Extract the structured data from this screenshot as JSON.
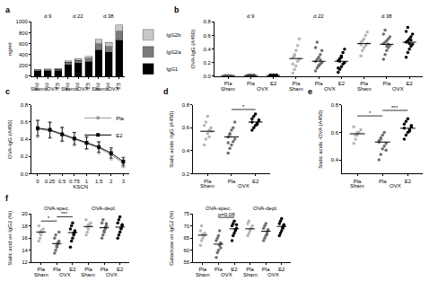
{
  "chart_data": [
    {
      "type": "bar",
      "title": "a",
      "y_label": "ng/ml",
      "stacked": true,
      "grid": false,
      "legend": "right",
      "categories": [
        "Pla",
        "Pla",
        "E2",
        "Pla",
        "Pla",
        "E2",
        "Pla",
        "Pla",
        "E2"
      ],
      "series": [
        {
          "name": "IgG1",
          "color": "#000000",
          "values": [
            95,
            100,
            105,
            210,
            240,
            270,
            480,
            440,
            660
          ]
        },
        {
          "name": "IgG2a",
          "color": "#7a7a7a",
          "values": [
            20,
            22,
            25,
            50,
            55,
            60,
            120,
            110,
            170
          ]
        },
        {
          "name": "IgG2b",
          "color": "#c8c8c8",
          "values": [
            10,
            12,
            12,
            25,
            30,
            35,
            80,
            70,
            110
          ]
        }
      ],
      "ylim": [
        0,
        1000
      ],
      "yticks": [
        0,
        200,
        400,
        600,
        800,
        1000
      ],
      "headers": [
        {
          "label": "d 9",
          "x": 1
        },
        {
          "label": "d 22",
          "x": 4
        },
        {
          "label": "d 38",
          "x": 7
        }
      ],
      "group_labels": [
        {
          "label": "Sham",
          "x": 0
        },
        {
          "label": "OVX",
          "x": 1.5
        },
        {
          "label": "Sham",
          "x": 3
        },
        {
          "label": "OVX",
          "x": 4.5
        },
        {
          "label": "Sham",
          "x": 6
        },
        {
          "label": "OVX",
          "x": 7.5
        }
      ]
    },
    {
      "type": "scatter",
      "title": "b",
      "y_label": "OVA-IgG (A450)",
      "grid": false,
      "categories": [
        "Pla",
        "Pla",
        "E2",
        "Pla",
        "Pla",
        "E2",
        "Pla",
        "Pla",
        "E2"
      ],
      "points": [
        {
          "color": "#b5b5b5",
          "median": 0.01,
          "values": [
            0.01,
            0.01,
            0.02,
            0.01,
            0.01,
            0.02,
            0.01,
            0.01
          ]
        },
        {
          "color": "#6e6e6e",
          "median": 0.01,
          "values": [
            0.01,
            0.02,
            0.01,
            0.01,
            0.02,
            0.01,
            0.01,
            0.02,
            0.01,
            0.01
          ]
        },
        {
          "color": "#000000",
          "median": 0.01,
          "values": [
            0.01,
            0.01,
            0.02,
            0.01,
            0.01,
            0.02,
            0.01,
            0.01,
            0.01,
            0.02
          ]
        },
        {
          "color": "#b5b5b5",
          "median": 0.26,
          "values": [
            0.05,
            0.1,
            0.15,
            0.22,
            0.25,
            0.28,
            0.32,
            0.38,
            0.45,
            0.55,
            0.18,
            0.3
          ]
        },
        {
          "color": "#6e6e6e",
          "median": 0.22,
          "values": [
            0.08,
            0.12,
            0.15,
            0.18,
            0.2,
            0.22,
            0.25,
            0.28,
            0.32,
            0.38,
            0.42,
            0.5,
            0.16,
            0.24
          ]
        },
        {
          "color": "#000000",
          "median": 0.22,
          "values": [
            0.06,
            0.1,
            0.14,
            0.18,
            0.2,
            0.23,
            0.26,
            0.3,
            0.35,
            0.4,
            0.12,
            0.22,
            0.28
          ]
        },
        {
          "color": "#b5b5b5",
          "median": 0.48,
          "values": [
            0.3,
            0.38,
            0.42,
            0.45,
            0.48,
            0.5,
            0.52,
            0.55,
            0.6,
            0.65,
            0.46
          ]
        },
        {
          "color": "#6e6e6e",
          "median": 0.47,
          "values": [
            0.25,
            0.32,
            0.38,
            0.42,
            0.45,
            0.48,
            0.5,
            0.52,
            0.55,
            0.58,
            0.62,
            0.68,
            0.44,
            0.47
          ]
        },
        {
          "color": "#000000",
          "median": 0.5,
          "values": [
            0.28,
            0.35,
            0.4,
            0.44,
            0.47,
            0.5,
            0.52,
            0.55,
            0.58,
            0.62,
            0.66,
            0.72,
            0.48,
            0.53
          ]
        }
      ],
      "ylim": [
        0,
        0.8
      ],
      "yticks": [
        {
          "value": 0,
          "label": "0.0"
        },
        0.2,
        0.4,
        0.6,
        0.8
      ],
      "headers": [
        {
          "label": "d 9",
          "x": 1
        },
        {
          "label": "d 22",
          "x": 4
        },
        {
          "label": "d 38",
          "x": 7
        }
      ],
      "group_labels": [
        {
          "label": "Sham",
          "x": 0
        },
        {
          "label": "OVX",
          "x": 1.5
        },
        {
          "label": "Sham",
          "x": 3
        },
        {
          "label": "OVX",
          "x": 4.5
        },
        {
          "label": "Sham",
          "x": 6
        },
        {
          "label": "OVX",
          "x": 7.5
        }
      ]
    },
    {
      "type": "line",
      "title": "c",
      "x_label": "KSCN",
      "y_label": "OVA-IgG (A450)",
      "grid": false,
      "legend": "top right",
      "categories": [
        "0",
        "0.25",
        "0.5",
        "0.75",
        "1",
        "1.5",
        "2",
        "3"
      ],
      "series": [
        {
          "name": "Pla",
          "color": "#999999",
          "marker": "circle",
          "line_style": "solid",
          "values": [
            0.52,
            0.5,
            0.45,
            0.4,
            0.35,
            0.3,
            0.22,
            0.12
          ],
          "errors": [
            0.1,
            0.09,
            0.08,
            0.08,
            0.07,
            0.07,
            0.06,
            0.05
          ]
        },
        {
          "name": "E2",
          "color": "#000000",
          "marker": "square",
          "line_style": "solid",
          "values": [
            0.53,
            0.51,
            0.46,
            0.41,
            0.36,
            0.31,
            0.24,
            0.14
          ],
          "errors": [
            0.09,
            0.09,
            0.08,
            0.07,
            0.07,
            0.06,
            0.06,
            0.05
          ]
        }
      ],
      "ylim": [
        0,
        0.8
      ],
      "yticks": [
        {
          "value": 0,
          "label": "0.0"
        },
        0.2,
        0.4,
        0.6,
        0.8
      ]
    },
    {
      "type": "scatter",
      "title": "d",
      "y_label": "Sialic acids -IgG (A450)",
      "grid": false,
      "categories": [
        "Pla",
        "Pla",
        "E2"
      ],
      "points": [
        {
          "color": "#b5b5b5",
          "median": 0.57,
          "values": [
            0.45,
            0.5,
            0.55,
            0.58,
            0.6,
            0.62,
            0.65,
            0.7,
            0.52,
            0.57
          ]
        },
        {
          "color": "#6e6e6e",
          "median": 0.52,
          "values": [
            0.38,
            0.42,
            0.45,
            0.48,
            0.5,
            0.52,
            0.55,
            0.58,
            0.6,
            0.65,
            0.47,
            0.54
          ]
        },
        {
          "color": "#000000",
          "median": 0.65,
          "values": [
            0.58,
            0.6,
            0.62,
            0.64,
            0.66,
            0.68,
            0.7,
            0.72,
            0.63,
            0.67,
            0.65
          ]
        }
      ],
      "ylim": [
        0.2,
        0.8
      ],
      "yticks": [
        0.2,
        0.4,
        0.6,
        0.8
      ],
      "comparisons": [
        {
          "label": "*",
          "from": 1,
          "to": 2,
          "y": 0.76
        }
      ],
      "group_labels": [
        {
          "label": "Sham",
          "x": 0
        },
        {
          "label": "OVX",
          "x": 1.5
        }
      ]
    },
    {
      "type": "scatter",
      "title": "e",
      "y_label": "Sialic acids -OVA (A450)",
      "grid": false,
      "categories": [
        "Pla",
        "Pla",
        "E2"
      ],
      "points": [
        {
          "color": "#b5b5b5",
          "median": 0.59,
          "values": [
            0.52,
            0.55,
            0.58,
            0.6,
            0.62,
            0.64,
            0.58,
            0.6
          ]
        },
        {
          "color": "#6e6e6e",
          "median": 0.53,
          "values": [
            0.4,
            0.44,
            0.48,
            0.5,
            0.52,
            0.54,
            0.56,
            0.58,
            0.6,
            0.47,
            0.53,
            0.55
          ]
        },
        {
          "color": "#000000",
          "median": 0.63,
          "values": [
            0.55,
            0.58,
            0.6,
            0.62,
            0.64,
            0.66,
            0.68,
            0.7,
            0.61,
            0.65,
            0.63
          ]
        }
      ],
      "ylim": [
        0.3,
        0.8
      ],
      "yticks": [
        0.4,
        0.6,
        0.8
      ],
      "comparisons": [
        {
          "label": "*",
          "from": 0,
          "to": 1,
          "y": 0.72
        },
        {
          "label": "***",
          "from": 1,
          "to": 2,
          "y": 0.76
        }
      ],
      "group_labels": [
        {
          "label": "Sham",
          "x": 0
        },
        {
          "label": "OVX",
          "x": 1.5
        }
      ]
    },
    {
      "type": "scatter",
      "title": "f",
      "y_label": "Sialic acid on IgG2 (%)",
      "grid": false,
      "categories": [
        "Pla",
        "Pla",
        "E2",
        "Pla",
        "Pla",
        "E2"
      ],
      "points": [
        {
          "color": "#b5b5b5",
          "median": 17,
          "values": [
            15.5,
            16,
            16.5,
            17,
            17.5,
            18,
            16.8,
            17.2
          ]
        },
        {
          "color": "#6e6e6e",
          "median": 15.1,
          "values": [
            13.5,
            14,
            14.5,
            15,
            15.5,
            16,
            16.5,
            14.8,
            15.2,
            17
          ]
        },
        {
          "color": "#000000",
          "median": 16.9,
          "values": [
            14.5,
            15.5,
            16,
            16.5,
            17,
            17.5,
            18,
            18.5,
            16.8,
            17.2
          ]
        },
        {
          "color": "#b5b5b5",
          "median": 17.9,
          "values": [
            16.5,
            17,
            17.5,
            18,
            18.5,
            19,
            17.8,
            18.2
          ]
        },
        {
          "color": "#6e6e6e",
          "median": 17.7,
          "values": [
            16,
            16.5,
            17,
            17.5,
            18,
            18.5,
            19,
            17.2,
            17.8,
            18.4
          ]
        },
        {
          "color": "#000000",
          "median": 17.8,
          "values": [
            16,
            16.5,
            17,
            17.5,
            18,
            18.5,
            19,
            19.5,
            17.6,
            18.2
          ]
        }
      ],
      "ylim": [
        12,
        20
      ],
      "yticks": [
        12,
        14,
        16,
        18,
        20
      ],
      "comparisons": [
        {
          "label": "*",
          "from": 0,
          "to": 1,
          "y": 18.8
        },
        {
          "label": "***",
          "from": 1,
          "to": 2,
          "y": 19.5
        }
      ],
      "headers": [
        {
          "label": "OVA-spec.",
          "x": 1
        },
        {
          "label": "OVA-depl.",
          "x": 4
        }
      ],
      "group_labels": [
        {
          "label": "Sham",
          "x": 0
        },
        {
          "label": "OVX",
          "x": 1.5
        },
        {
          "label": "Sham",
          "x": 3
        },
        {
          "label": "OVX",
          "x": 4.5
        }
      ]
    },
    {
      "type": "scatter",
      "y_label": "Galactose on IgG2 (%)",
      "grid": false,
      "categories": [
        "Pla",
        "Pla",
        "E2",
        "Pla",
        "Pla",
        "E2"
      ],
      "points": [
        {
          "color": "#b5b5b5",
          "median": 66.2,
          "values": [
            62,
            64,
            65,
            66,
            67,
            68,
            70,
            66.5
          ]
        },
        {
          "color": "#6e6e6e",
          "median": 62.5,
          "values": [
            57,
            59,
            60,
            62,
            63,
            64,
            65,
            66,
            68,
            61
          ]
        },
        {
          "color": "#000000",
          "median": 68.8,
          "values": [
            64,
            66,
            67,
            68,
            69,
            70,
            71,
            72,
            68.5,
            70.5
          ]
        },
        {
          "color": "#b5b5b5",
          "median": 68.8,
          "values": [
            66,
            67,
            68,
            69,
            70,
            71,
            72,
            68.5
          ]
        },
        {
          "color": "#6e6e6e",
          "median": 67.8,
          "values": [
            64,
            65,
            66,
            67,
            68,
            69,
            70,
            71,
            66.5,
            68.5
          ]
        },
        {
          "color": "#000000",
          "median": 69.8,
          "values": [
            66,
            67,
            68,
            69,
            70,
            71,
            72,
            73,
            69.5,
            70.5
          ]
        }
      ],
      "ylim": [
        55,
        75
      ],
      "yticks": [
        55,
        60,
        65,
        70,
        75
      ],
      "comparisons": [
        {
          "label": "p=0.08",
          "from": 1,
          "to": 2,
          "y": 73.5
        }
      ],
      "headers": [
        {
          "label": "OVA-spec.",
          "x": 1
        },
        {
          "label": "OVA-depl.",
          "x": 4
        }
      ],
      "group_labels": [
        {
          "label": "Sham",
          "x": 0
        },
        {
          "label": "OVX",
          "x": 1.5
        },
        {
          "label": "Sham",
          "x": 3
        },
        {
          "label": "OVX",
          "x": 4.5
        }
      ]
    }
  ]
}
